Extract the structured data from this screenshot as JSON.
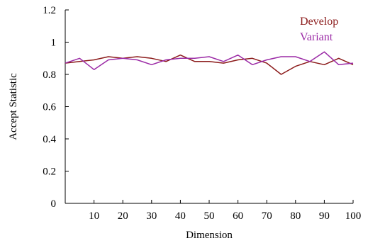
{
  "chart_data": {
    "type": "line",
    "title": "",
    "xlabel": "Dimension",
    "ylabel": "Accept Statistic",
    "xlim": [
      0,
      100
    ],
    "ylim": [
      0,
      1.2
    ],
    "x_ticks": [
      10,
      20,
      30,
      40,
      50,
      60,
      70,
      80,
      90,
      100
    ],
    "y_ticks": [
      0,
      0.2,
      0.4,
      0.6,
      0.8,
      1,
      1.2
    ],
    "y_tick_labels": [
      "0",
      "0.2",
      "0.4",
      "0.6",
      "0.8",
      "1",
      "1.2"
    ],
    "grid": false,
    "legend_position": "top-right",
    "x": [
      0,
      5,
      10,
      15,
      20,
      25,
      30,
      35,
      40,
      45,
      50,
      55,
      60,
      65,
      70,
      75,
      80,
      85,
      90,
      95,
      100
    ],
    "series": [
      {
        "name": "Develop",
        "color": "#8b1a1a",
        "values": [
          0.87,
          0.88,
          0.89,
          0.91,
          0.9,
          0.91,
          0.9,
          0.88,
          0.92,
          0.88,
          0.88,
          0.87,
          0.89,
          0.9,
          0.87,
          0.8,
          0.85,
          0.88,
          0.86,
          0.9,
          0.86
        ]
      },
      {
        "name": "Variant",
        "color": "#9b2aa6",
        "values": [
          0.87,
          0.9,
          0.83,
          0.89,
          0.9,
          0.89,
          0.86,
          0.89,
          0.9,
          0.9,
          0.91,
          0.88,
          0.92,
          0.86,
          0.89,
          0.91,
          0.91,
          0.88,
          0.94,
          0.86,
          0.87
        ]
      }
    ]
  }
}
